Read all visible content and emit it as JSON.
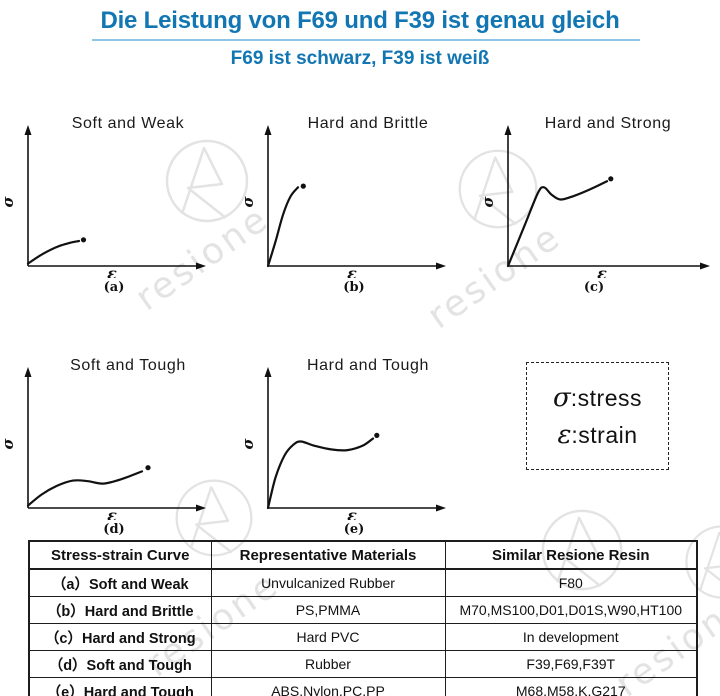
{
  "header": {
    "title": "Die Leistung von F69 und F39 ist genau gleich",
    "subtitle": "F69 ist schwarz, F39 ist weiß",
    "title_color": "#1276b3",
    "underline_color": "#8cc6e4"
  },
  "axis": {
    "y_label": "σ",
    "x_label": "ε"
  },
  "charts": [
    {
      "title": "Soft and Weak",
      "caption": "(a)",
      "curve": [
        [
          0,
          0.02
        ],
        [
          0.1,
          0.1
        ],
        [
          0.2,
          0.16
        ],
        [
          0.28,
          0.19
        ],
        [
          0.34,
          0.205
        ]
      ],
      "dot": [
        0.37,
        0.215
      ]
    },
    {
      "title": "Hard and Brittle",
      "caption": "(b)",
      "curve": [
        [
          0,
          0
        ],
        [
          0.05,
          0.2
        ],
        [
          0.1,
          0.42
        ],
        [
          0.15,
          0.57
        ],
        [
          0.2,
          0.645
        ]
      ],
      "dot": [
        0.235,
        0.655
      ]
    },
    {
      "title": "Hard and Strong",
      "caption": "(c)",
      "curve": [
        [
          0,
          0
        ],
        [
          0.11,
          0.33
        ],
        [
          0.2,
          0.6
        ],
        [
          0.24,
          0.645
        ],
        [
          0.29,
          0.585
        ],
        [
          0.35,
          0.545
        ],
        [
          0.44,
          0.575
        ],
        [
          0.55,
          0.63
        ],
        [
          0.66,
          0.695
        ]
      ],
      "dot": [
        0.685,
        0.715
      ]
    },
    {
      "title": "Soft and Tough",
      "caption": "(d)",
      "curve": [
        [
          0,
          0.02
        ],
        [
          0.09,
          0.11
        ],
        [
          0.19,
          0.18
        ],
        [
          0.3,
          0.225
        ],
        [
          0.4,
          0.22
        ],
        [
          0.5,
          0.2
        ],
        [
          0.62,
          0.235
        ],
        [
          0.76,
          0.3
        ]
      ],
      "dot": [
        0.8,
        0.33
      ]
    },
    {
      "title": "Hard and Tough",
      "caption": "(e)",
      "curve": [
        [
          0,
          0
        ],
        [
          0.05,
          0.25
        ],
        [
          0.11,
          0.43
        ],
        [
          0.17,
          0.52
        ],
        [
          0.22,
          0.545
        ],
        [
          0.31,
          0.51
        ],
        [
          0.42,
          0.48
        ],
        [
          0.53,
          0.475
        ],
        [
          0.63,
          0.51
        ],
        [
          0.7,
          0.57
        ]
      ],
      "dot": [
        0.725,
        0.595
      ]
    }
  ],
  "legend": {
    "lines": [
      {
        "symbol": "σ",
        "label": ":stress"
      },
      {
        "symbol": "ε",
        "label": ":strain"
      }
    ]
  },
  "watermark": {
    "text": "resione",
    "color": "#e3e3e3"
  },
  "table": {
    "headers": [
      "Stress-strain Curve",
      "Representative Materials",
      "Similar Resione Resin"
    ],
    "rows": [
      [
        "（a）Soft and Weak",
        "Unvulcanized Rubber",
        "F80"
      ],
      [
        "（b）Hard and Brittle",
        "PS,PMMA",
        "M70,MS100,D01,D01S,W90,HT100"
      ],
      [
        "（c）Hard and Strong",
        "Hard PVC",
        "In development"
      ],
      [
        "（d）Soft and Tough",
        "Rubber",
        "F39,F69,F39T"
      ],
      [
        "（e）Hard and Tough",
        "ABS,Nylon,PC,PP",
        "M68,M58,K,G217"
      ]
    ]
  }
}
